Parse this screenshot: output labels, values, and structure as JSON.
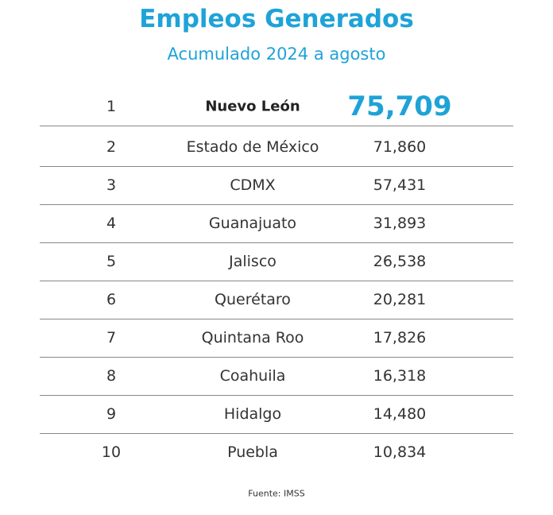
{
  "header": {
    "title": "Empleos Generados",
    "subtitle": "Acumulado 2024 a agosto"
  },
  "table": {
    "rows": [
      [
        "1",
        "Nuevo León",
        "75,709"
      ],
      [
        "2",
        "Estado de México",
        "71,860"
      ],
      [
        "3",
        "CDMX",
        "57,431"
      ],
      [
        "4",
        "Guanajuato",
        "31,893"
      ],
      [
        "5",
        "Jalisco",
        "26,538"
      ],
      [
        "6",
        "Querétaro",
        "20,281"
      ],
      [
        "7",
        "Quintana Roo",
        "17,826"
      ],
      [
        "8",
        "Coahuila",
        "16,318"
      ],
      [
        "9",
        "Hidalgo",
        "14,480"
      ],
      [
        "10",
        "Puebla",
        "10,834"
      ]
    ]
  },
  "footer": {
    "source": "Fuente: IMSS"
  }
}
